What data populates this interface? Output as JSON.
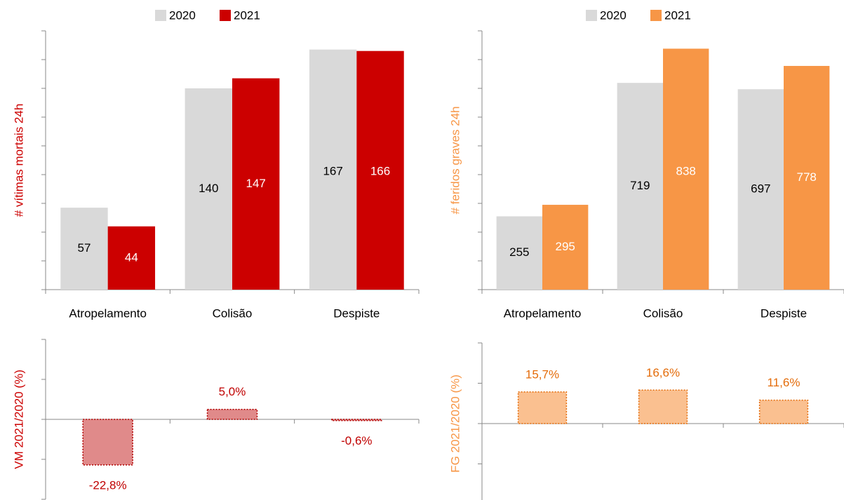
{
  "chart_data": [
    {
      "type": "bar",
      "ylabel": "# vítimas mortais 24h",
      "ylabel_color": "#cc0000",
      "categories": [
        "Atropelamento",
        "Colisão",
        "Despiste"
      ],
      "series": [
        {
          "name": "2020",
          "color": "#d9d9d9",
          "label_color": "#000000",
          "values": [
            57,
            140,
            167
          ]
        },
        {
          "name": "2021",
          "color": "#cc0000",
          "label_color": "#ffffff",
          "values": [
            44,
            147,
            166
          ]
        }
      ],
      "ylim": [
        0,
        180
      ],
      "yticks": [
        0,
        20,
        40,
        60,
        80,
        100,
        120,
        140,
        160,
        180
      ]
    },
    {
      "type": "bar",
      "ylabel": "# feridos graves 24h",
      "ylabel_color": "#f79646",
      "categories": [
        "Atropelamento",
        "Colisão",
        "Despiste"
      ],
      "series": [
        {
          "name": "2020",
          "color": "#d9d9d9",
          "label_color": "#000000",
          "values": [
            255,
            719,
            697
          ]
        },
        {
          "name": "2021",
          "color": "#f79646",
          "label_color": "#ffffff",
          "values": [
            295,
            838,
            778
          ]
        }
      ],
      "ylim": [
        0,
        900
      ],
      "yticks": [
        0,
        100,
        200,
        300,
        400,
        500,
        600,
        700,
        800,
        900
      ]
    },
    {
      "type": "bar",
      "ylabel": "VM 2021/2020 (%)",
      "ylabel_color": "#cc0000",
      "values": [
        -22.8,
        5.0,
        -0.6
      ],
      "value_labels": [
        "-22,8%",
        "5,0%",
        "-0,6%"
      ],
      "color": "#e08a8a",
      "edge_color": "#b00000",
      "label_color": "#c00000",
      "ylim": [
        -40,
        40
      ],
      "yticks": [
        -40,
        -20,
        0,
        20,
        40
      ]
    },
    {
      "type": "bar",
      "ylabel": "FG 2021/2020 (%)",
      "ylabel_color": "#f79646",
      "values": [
        15.7,
        16.6,
        11.6
      ],
      "value_labels": [
        "15,7%",
        "16,6%",
        "11,6%"
      ],
      "color": "#fac090",
      "edge_color": "#e46c0a",
      "label_color": "#e46c0a",
      "ylim": [
        -40,
        40
      ],
      "yticks": [
        -40,
        -20,
        0,
        20,
        40
      ]
    }
  ]
}
